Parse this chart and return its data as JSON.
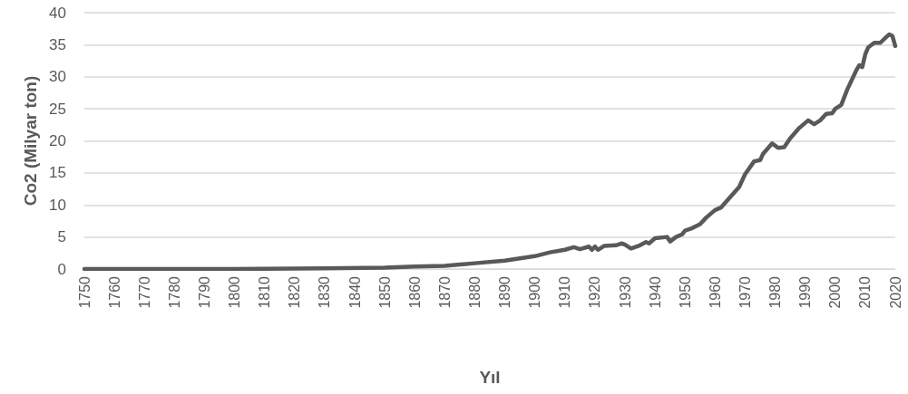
{
  "chart_data": {
    "type": "line",
    "xlabel": "Yıl",
    "ylabel": "Co2 (Milyar ton)",
    "xlim": [
      1750,
      2020
    ],
    "xticks": [
      1750,
      1760,
      1770,
      1780,
      1790,
      1800,
      1810,
      1820,
      1830,
      1840,
      1850,
      1860,
      1870,
      1880,
      1890,
      1900,
      1910,
      1920,
      1930,
      1940,
      1950,
      1960,
      1970,
      1980,
      1990,
      2000,
      2010,
      2020
    ],
    "ylim": [
      0,
      40
    ],
    "yticks": [
      0,
      5,
      10,
      15,
      20,
      25,
      30,
      35,
      40
    ],
    "grid": "y",
    "marker": "none",
    "line_style": "solid",
    "series": [
      {
        "color": "#595959",
        "x": [
          1750,
          1800,
          1830,
          1850,
          1860,
          1870,
          1880,
          1890,
          1900,
          1905,
          1910,
          1913,
          1915,
          1918,
          1919,
          1920,
          1921,
          1923,
          1927,
          1929,
          1930,
          1932,
          1935,
          1937,
          1938,
          1940,
          1944,
          1945,
          1947,
          1949,
          1950,
          1952,
          1955,
          1957,
          1960,
          1962,
          1965,
          1968,
          1970,
          1973,
          1975,
          1976,
          1979,
          1981,
          1983,
          1985,
          1988,
          1991,
          1993,
          1995,
          1997,
          1999,
          2000,
          2002,
          2004,
          2007,
          2008,
          2009,
          2010,
          2011,
          2013,
          2015,
          2017,
          2018,
          2019,
          2020
        ],
        "values": [
          0,
          0,
          0.1,
          0.2,
          0.4,
          0.5,
          0.9,
          1.3,
          2.0,
          2.6,
          3.0,
          3.4,
          3.1,
          3.5,
          3.0,
          3.5,
          3.0,
          3.6,
          3.7,
          4.0,
          3.8,
          3.2,
          3.7,
          4.2,
          4.0,
          4.8,
          5.0,
          4.3,
          5.0,
          5.4,
          6.0,
          6.3,
          7.0,
          8.0,
          9.2,
          9.6,
          11.2,
          12.8,
          14.8,
          16.8,
          17.0,
          18.0,
          19.6,
          18.9,
          19.0,
          20.4,
          22.0,
          23.2,
          22.6,
          23.2,
          24.2,
          24.3,
          25.0,
          25.6,
          28.0,
          31.0,
          31.8,
          31.5,
          33.5,
          34.6,
          35.3,
          35.3,
          36.2,
          36.6,
          36.4,
          34.8
        ]
      }
    ]
  }
}
